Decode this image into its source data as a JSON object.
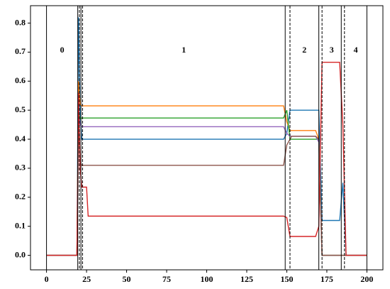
{
  "chart_data": {
    "type": "line",
    "x": [
      0,
      19,
      20,
      21,
      22,
      23,
      25,
      26,
      148,
      150,
      152,
      153,
      168,
      170,
      172,
      174,
      183,
      185,
      187,
      200
    ],
    "series": [
      {
        "color": "#1f77b4",
        "values": [
          0,
          0,
          0.82,
          0.5,
          0.4,
          0.4,
          0.4,
          0.4,
          0.4,
          0.42,
          0.5,
          0.5,
          0.5,
          0.5,
          0.12,
          0.12,
          0.12,
          0.25,
          0,
          0
        ]
      },
      {
        "color": "#ff7f0e",
        "values": [
          0,
          0,
          0.6,
          0.52,
          0.515,
          0.515,
          0.515,
          0.515,
          0.515,
          0.46,
          0.43,
          0.43,
          0.43,
          0.4,
          0,
          0,
          0,
          0,
          0,
          0
        ]
      },
      {
        "color": "#2ca02c",
        "values": [
          0,
          0,
          0.5,
          0.47,
          0.473,
          0.473,
          0.473,
          0.473,
          0.473,
          0.5,
          0.4,
          0.4,
          0.4,
          0.4,
          0,
          0,
          0,
          0,
          0,
          0
        ]
      },
      {
        "color": "#9467bd",
        "values": [
          0,
          0,
          0.5,
          0.45,
          0.443,
          0.443,
          0.443,
          0.443,
          0.443,
          0.42,
          0.41,
          0.41,
          0.41,
          0.39,
          0,
          0,
          0,
          0,
          0,
          0
        ]
      },
      {
        "color": "#8c564b",
        "values": [
          0,
          0,
          0.45,
          0.32,
          0.31,
          0.31,
          0.31,
          0.31,
          0.31,
          0.38,
          0.4,
          0.41,
          0.41,
          0.4,
          0,
          0,
          0,
          0,
          0,
          0
        ]
      },
      {
        "color": "#d62728",
        "values": [
          0,
          0,
          0.56,
          0.3,
          0.235,
          0.235,
          0.235,
          0.135,
          0.135,
          0.13,
          0.065,
          0.065,
          0.065,
          0.1,
          0.665,
          0.665,
          0.665,
          0.45,
          0,
          0
        ]
      }
    ],
    "vlines": [
      {
        "x": 0,
        "style": "solid"
      },
      {
        "x": 19.5,
        "style": "solid"
      },
      {
        "x": 20.5,
        "style": "dashed"
      },
      {
        "x": 21.5,
        "style": "solid"
      },
      {
        "x": 22.5,
        "style": "dashed"
      },
      {
        "x": 149,
        "style": "solid"
      },
      {
        "x": 152,
        "style": "dashed"
      },
      {
        "x": 170,
        "style": "solid"
      },
      {
        "x": 172,
        "style": "dashed"
      },
      {
        "x": 184,
        "style": "solid"
      },
      {
        "x": 186,
        "style": "dashed"
      },
      {
        "x": 200,
        "style": "solid"
      }
    ],
    "regions": [
      {
        "label": "0",
        "start": 0,
        "end": 19.5
      },
      {
        "label": "1",
        "start": 22.5,
        "end": 149
      },
      {
        "label": "2",
        "start": 152,
        "end": 170
      },
      {
        "label": "3",
        "start": 172,
        "end": 184
      },
      {
        "label": "4",
        "start": 186,
        "end": 200
      }
    ],
    "xlim": [
      -10,
      210
    ],
    "ylim": [
      -0.05,
      0.86
    ],
    "xticks": [
      0,
      25,
      50,
      75,
      100,
      125,
      150,
      175,
      200
    ],
    "yticks": [
      {
        "value": 0,
        "label": "0.0"
      },
      {
        "value": 0.1,
        "label": "0.1"
      },
      {
        "value": 0.2,
        "label": "0.2"
      },
      {
        "value": 0.3,
        "label": "0.3"
      },
      {
        "value": 0.4,
        "label": "0.4"
      },
      {
        "value": 0.5,
        "label": "0.5"
      },
      {
        "value": 0.6,
        "label": "0.6"
      },
      {
        "value": 0.7,
        "label": "0.7"
      },
      {
        "value": 0.8,
        "label": "0.8"
      }
    ]
  }
}
